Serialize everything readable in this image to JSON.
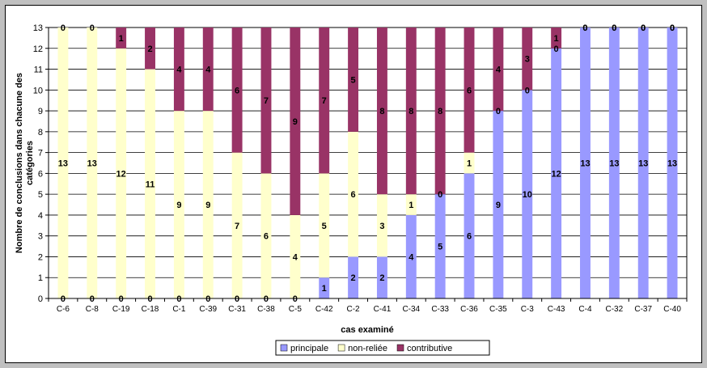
{
  "chart_data": {
    "type": "bar",
    "stacked": true,
    "title": "",
    "xlabel": "cas examiné",
    "ylabel": "Nombre de conclusions dans chacune des catégories",
    "ylim": [
      0,
      13
    ],
    "yticks": [
      0,
      1,
      2,
      3,
      4,
      5,
      6,
      7,
      8,
      9,
      10,
      11,
      12,
      13
    ],
    "grid": true,
    "legend_position": "bottom",
    "categories": [
      "C-6",
      "C-8",
      "C-19",
      "C-18",
      "C-1",
      "C-39",
      "C-31",
      "C-38",
      "C-5",
      "C-42",
      "C-2",
      "C-41",
      "C-34",
      "C-33",
      "C-36",
      "C-35",
      "C-3",
      "C-43",
      "C-4",
      "C-32",
      "C-37",
      "C-40"
    ],
    "series": [
      {
        "name": "principale",
        "color": "#9999ff",
        "values": [
          0,
          0,
          0,
          0,
          0,
          0,
          0,
          0,
          0,
          1,
          2,
          2,
          4,
          5,
          6,
          9,
          10,
          12,
          13,
          13,
          13,
          13
        ]
      },
      {
        "name": "non-reliée",
        "color": "#ffffcc",
        "values": [
          13,
          13,
          12,
          11,
          9,
          9,
          7,
          6,
          4,
          5,
          6,
          3,
          1,
          0,
          1,
          0,
          0,
          0,
          0,
          0,
          0,
          0
        ]
      },
      {
        "name": "contributive",
        "color": "#993366",
        "values": [
          0,
          0,
          1,
          2,
          4,
          4,
          6,
          7,
          9,
          7,
          5,
          8,
          8,
          8,
          6,
          4,
          3,
          1,
          0,
          0,
          0,
          0
        ]
      }
    ]
  }
}
